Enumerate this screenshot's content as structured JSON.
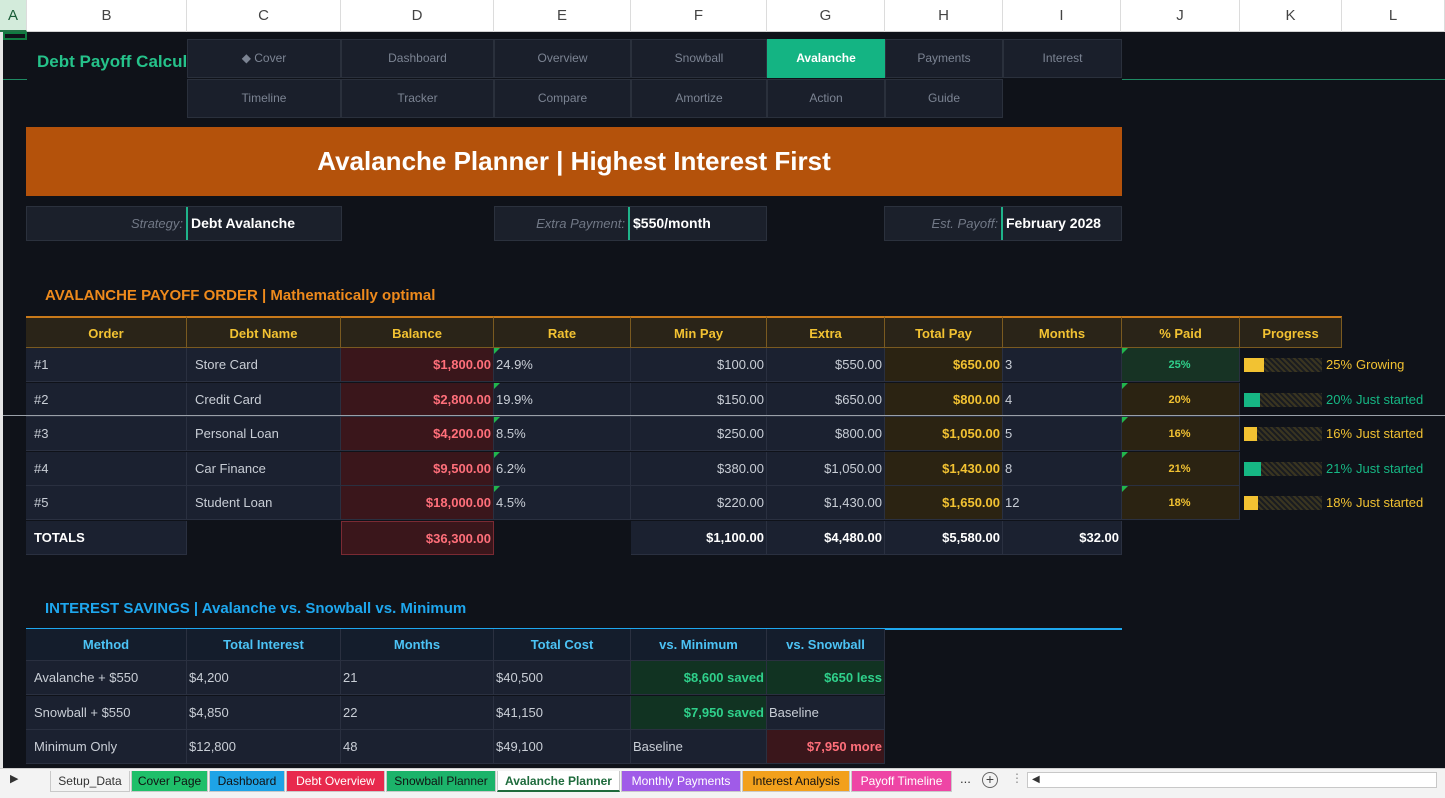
{
  "columns": [
    "A",
    "B",
    "C",
    "D",
    "E",
    "F",
    "G",
    "H",
    "I",
    "J",
    "K",
    "L"
  ],
  "app_title": "Debt Payoff Calculator",
  "nav": {
    "row1": [
      {
        "label": "◆ Cover"
      },
      {
        "label": "Dashboard"
      },
      {
        "label": "Overview"
      },
      {
        "label": "Snowball"
      },
      {
        "label": "Avalanche",
        "active": true
      },
      {
        "label": "Payments"
      },
      {
        "label": "Interest"
      }
    ],
    "row2": [
      {
        "label": "Timeline"
      },
      {
        "label": "Tracker"
      },
      {
        "label": "Compare"
      },
      {
        "label": "Amortize"
      },
      {
        "label": "Action"
      },
      {
        "label": "Guide"
      }
    ]
  },
  "banner": "Avalanche Planner  |  Highest Interest First",
  "info": [
    {
      "label": "Strategy:",
      "value": "Debt Avalanche"
    },
    {
      "label": "Extra Payment:",
      "value": "$550/month"
    },
    {
      "label": "Est. Payoff:",
      "value": "February 2028"
    }
  ],
  "payoff": {
    "heading": "AVALANCHE PAYOFF ORDER  |  Mathematically optimal",
    "headers": [
      "Order",
      "Debt Name",
      "Balance",
      "Rate",
      "Min Pay",
      "Extra",
      "Total Pay",
      "Months",
      "% Paid",
      "Progress"
    ],
    "rows": [
      {
        "order": "#1",
        "name": "Store Card",
        "balance": "$1,800.00",
        "rate": "24.9%",
        "min": "$100.00",
        "extra": "$550.00",
        "total": "$650.00",
        "months": "3",
        "pct": "25%",
        "progress": 0.25,
        "progress_text": "25%",
        "status": "Growing",
        "bar_color": "#f2c232",
        "status_color": "#f2c232",
        "pct_bg": "#173324",
        "pct_color": "#2fd08b"
      },
      {
        "order": "#2",
        "name": "Credit Card",
        "balance": "$2,800.00",
        "rate": "19.9%",
        "min": "$150.00",
        "extra": "$650.00",
        "total": "$800.00",
        "months": "4",
        "pct": "20%",
        "progress": 0.2,
        "progress_text": "20%",
        "status": "Just started",
        "bar_color": "#16b784",
        "status_color": "#16b784",
        "pct_bg": "#2b2312",
        "pct_color": "#f2c232"
      },
      {
        "order": "#3",
        "name": "Personal Loan",
        "balance": "$4,200.00",
        "rate": "8.5%",
        "min": "$250.00",
        "extra": "$800.00",
        "total": "$1,050.00",
        "months": "5",
        "pct": "16%",
        "progress": 0.16,
        "progress_text": "16%",
        "status": "Just started",
        "bar_color": "#f2c232",
        "status_color": "#f2c232",
        "pct_bg": "#2b2312",
        "pct_color": "#f2c232"
      },
      {
        "order": "#4",
        "name": "Car Finance",
        "balance": "$9,500.00",
        "rate": "6.2%",
        "min": "$380.00",
        "extra": "$1,050.00",
        "total": "$1,430.00",
        "months": "8",
        "pct": "21%",
        "progress": 0.21,
        "progress_text": "21%",
        "status": "Just started",
        "bar_color": "#16b784",
        "status_color": "#16b784",
        "pct_bg": "#2b2312",
        "pct_color": "#f2c232"
      },
      {
        "order": "#5",
        "name": "Student Loan",
        "balance": "$18,000.00",
        "rate": "4.5%",
        "min": "$220.00",
        "extra": "$1,430.00",
        "total": "$1,650.00",
        "months": "12",
        "pct": "18%",
        "progress": 0.18,
        "progress_text": "18%",
        "status": "Just started",
        "bar_color": "#f2c232",
        "status_color": "#f2c232",
        "pct_bg": "#2b2312",
        "pct_color": "#f2c232"
      }
    ],
    "totals": {
      "label": "TOTALS",
      "balance": "$36,300.00",
      "min": "$1,100.00",
      "extra": "$4,480.00",
      "total": "$5,580.00",
      "months": "$32.00"
    }
  },
  "savings": {
    "heading": "INTEREST SAVINGS  |  Avalanche vs. Snowball vs. Minimum",
    "headers": [
      "Method",
      "Total Interest",
      "Months",
      "Total Cost",
      "vs. Minimum",
      "vs. Snowball"
    ],
    "rows": [
      {
        "method": "Avalanche + $550",
        "interest": "$4,200",
        "months": "21",
        "cost": "$40,500",
        "vs_min": "$8,600 saved",
        "vs_snow": "$650 less"
      },
      {
        "method": "Snowball + $550",
        "interest": "$4,850",
        "months": "22",
        "cost": "$41,150",
        "vs_min": "$7,950 saved",
        "vs_snow": "Baseline"
      },
      {
        "method": "Minimum Only",
        "interest": "$12,800",
        "months": "48",
        "cost": "$49,100",
        "vs_min": "Baseline",
        "vs_snow": "$7,950 more"
      }
    ]
  },
  "tabs": [
    {
      "label": "Setup_Data",
      "color": "#f3f3f3",
      "text": "#333"
    },
    {
      "label": "Cover Page",
      "color": "#1fbf6a",
      "text": "#111"
    },
    {
      "label": "Dashboard",
      "color": "#1ea3e6",
      "text": "#111"
    },
    {
      "label": "Debt Overview",
      "color": "#e8294d",
      "text": "#fff"
    },
    {
      "label": "Snowball Planner",
      "color": "#1cb36a",
      "text": "#111"
    },
    {
      "label": "Avalanche Planner",
      "color": "#ffffff",
      "text": "#1e6b3c",
      "active": true
    },
    {
      "label": "Monthly Payments",
      "color": "#a05be8",
      "text": "#fff"
    },
    {
      "label": "Interest Analysis",
      "color": "#f2a01c",
      "text": "#111"
    },
    {
      "label": "Payoff Timeline",
      "color": "#ee45a5",
      "text": "#fff"
    }
  ],
  "tabs_more": "..."
}
